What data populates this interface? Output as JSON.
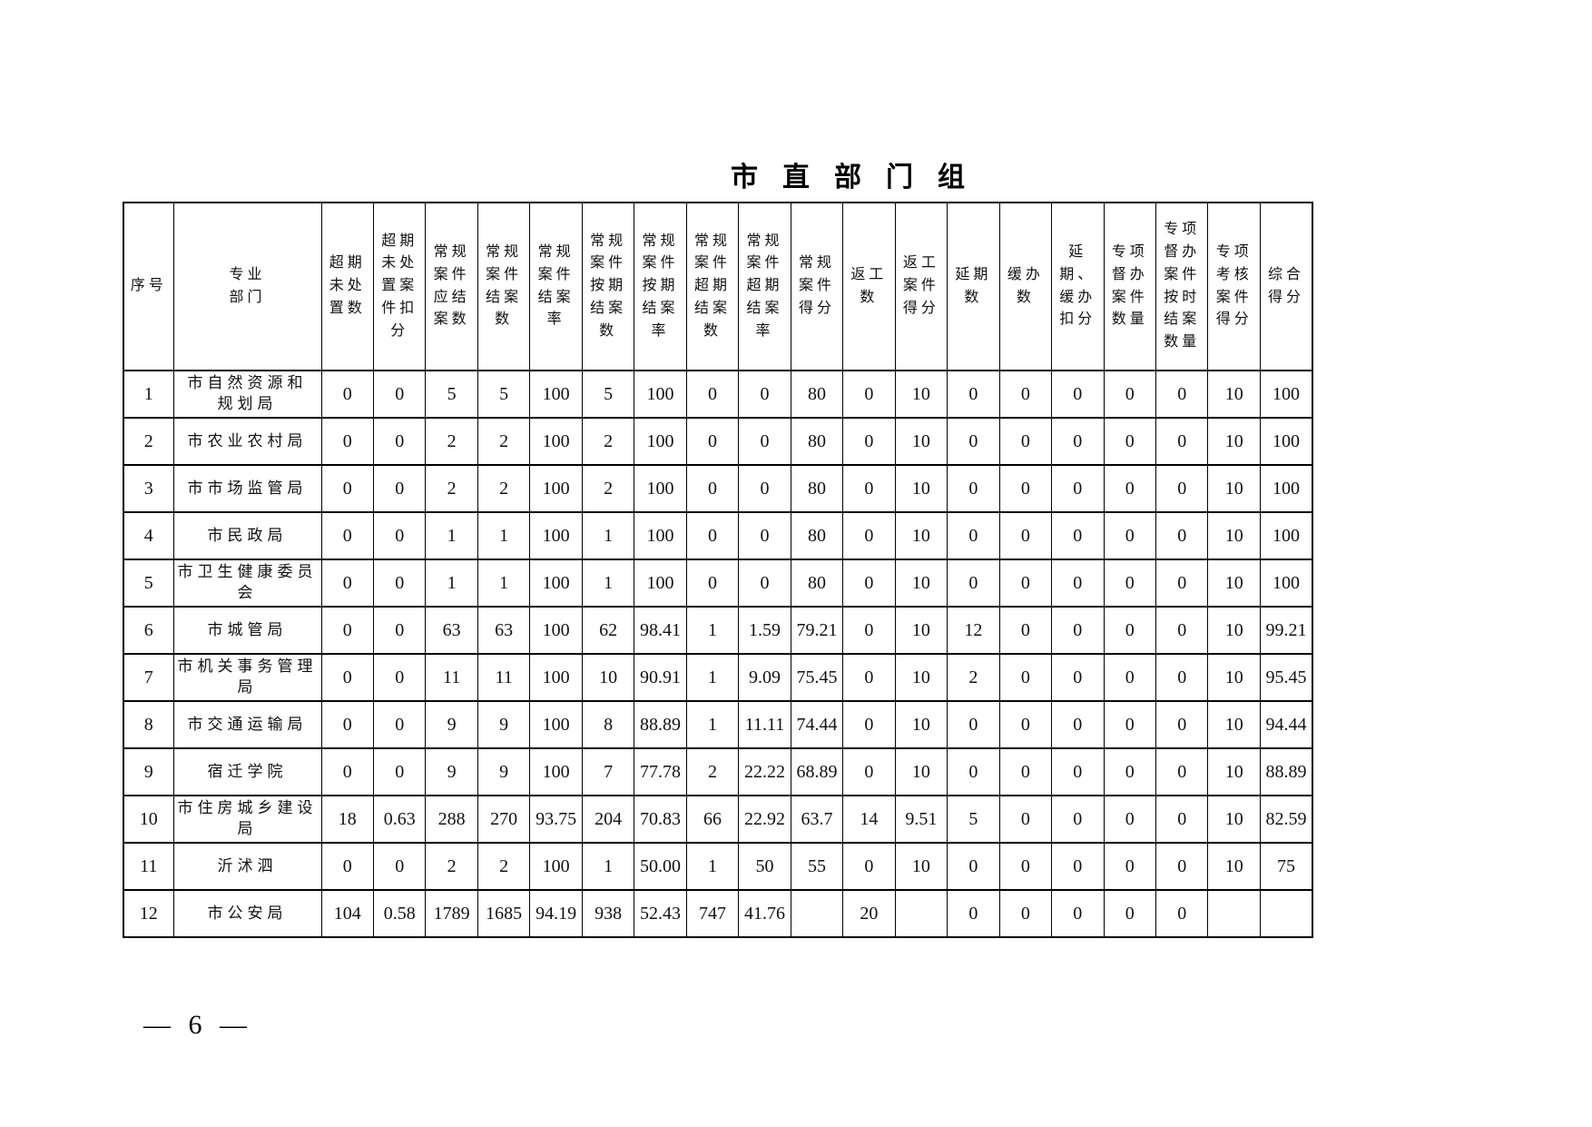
{
  "page": {
    "title": "市直部门组",
    "page_number": "— 6 —"
  },
  "colors": {
    "text": "#111111",
    "border": "#000000",
    "background": "#ffffff"
  },
  "table": {
    "headers": [
      "序号",
      "专业\n部门",
      "超期\n未处\n置数",
      "超期\n未处\n置案\n件扣\n分",
      "常规\n案件\n应结\n案数",
      "常规\n案件\n结案\n数",
      "常规\n案件\n结案\n率",
      "常规\n案件\n按期\n结案\n数",
      "常规\n案件\n按期\n结案\n率",
      "常规\n案件\n超期\n结案\n数",
      "常规\n案件\n超期\n结案\n率",
      "常规\n案件\n得分",
      "返工\n数",
      "返工\n案件\n得分",
      "延期\n数",
      "缓办\n数",
      "延期、\n缓办\n扣分",
      "专项\n督办\n案件\n数量",
      "专项\n督办\n案件\n按时\n结案\n数量",
      "专项\n考核\n案件\n得分",
      "综合\n得分"
    ],
    "rows": [
      {
        "no": "1",
        "department": "市自然资源和\n规划局",
        "values": [
          "0",
          "0",
          "5",
          "5",
          "100",
          "5",
          "100",
          "0",
          "0",
          "80",
          "0",
          "10",
          "0",
          "0",
          "0",
          "0",
          "0",
          "10",
          "100"
        ]
      },
      {
        "no": "2",
        "department": "市农业农村局",
        "values": [
          "0",
          "0",
          "2",
          "2",
          "100",
          "2",
          "100",
          "0",
          "0",
          "80",
          "0",
          "10",
          "0",
          "0",
          "0",
          "0",
          "0",
          "10",
          "100"
        ]
      },
      {
        "no": "3",
        "department": "市市场监管局",
        "values": [
          "0",
          "0",
          "2",
          "2",
          "100",
          "2",
          "100",
          "0",
          "0",
          "80",
          "0",
          "10",
          "0",
          "0",
          "0",
          "0",
          "0",
          "10",
          "100"
        ]
      },
      {
        "no": "4",
        "department": "市民政局",
        "values": [
          "0",
          "0",
          "1",
          "1",
          "100",
          "1",
          "100",
          "0",
          "0",
          "80",
          "0",
          "10",
          "0",
          "0",
          "0",
          "0",
          "0",
          "10",
          "100"
        ]
      },
      {
        "no": "5",
        "department": "市卫生健康委员会",
        "values": [
          "0",
          "0",
          "1",
          "1",
          "100",
          "1",
          "100",
          "0",
          "0",
          "80",
          "0",
          "10",
          "0",
          "0",
          "0",
          "0",
          "0",
          "10",
          "100"
        ]
      },
      {
        "no": "6",
        "department": "市城管局",
        "values": [
          "0",
          "0",
          "63",
          "63",
          "100",
          "62",
          "98.41",
          "1",
          "1.59",
          "79.21",
          "0",
          "10",
          "12",
          "0",
          "0",
          "0",
          "0",
          "10",
          "99.21"
        ]
      },
      {
        "no": "7",
        "department": "市机关事务管理局",
        "values": [
          "0",
          "0",
          "11",
          "11",
          "100",
          "10",
          "90.91",
          "1",
          "9.09",
          "75.45",
          "0",
          "10",
          "2",
          "0",
          "0",
          "0",
          "0",
          "10",
          "95.45"
        ]
      },
      {
        "no": "8",
        "department": "市交通运输局",
        "values": [
          "0",
          "0",
          "9",
          "9",
          "100",
          "8",
          "88.89",
          "1",
          "11.11",
          "74.44",
          "0",
          "10",
          "0",
          "0",
          "0",
          "0",
          "0",
          "10",
          "94.44"
        ]
      },
      {
        "no": "9",
        "department": "宿迁学院",
        "values": [
          "0",
          "0",
          "9",
          "9",
          "100",
          "7",
          "77.78",
          "2",
          "22.22",
          "68.89",
          "0",
          "10",
          "0",
          "0",
          "0",
          "0",
          "0",
          "10",
          "88.89"
        ]
      },
      {
        "no": "10",
        "department": "市住房城乡建设局",
        "values": [
          "18",
          "0.63",
          "288",
          "270",
          "93.75",
          "204",
          "70.83",
          "66",
          "22.92",
          "63.7",
          "14",
          "9.51",
          "5",
          "0",
          "0",
          "0",
          "0",
          "10",
          "82.59"
        ]
      },
      {
        "no": "11",
        "department": "沂沭泗",
        "values": [
          "0",
          "0",
          "2",
          "2",
          "100",
          "1",
          "50.00",
          "1",
          "50",
          "55",
          "0",
          "10",
          "0",
          "0",
          "0",
          "0",
          "0",
          "10",
          "75"
        ]
      },
      {
        "no": "12",
        "department": "市公安局",
        "values": [
          "104",
          "0.58",
          "1789",
          "1685",
          "94.19",
          "938",
          "52.43",
          "747",
          "41.76",
          "",
          "20",
          "",
          "0",
          "0",
          "0",
          "0",
          "0",
          "",
          ""
        ]
      }
    ]
  }
}
